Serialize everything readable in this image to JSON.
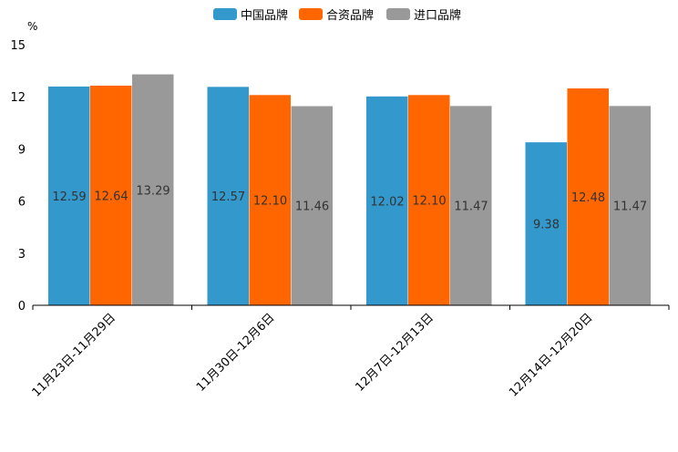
{
  "chart_data": {
    "type": "bar",
    "unit": "%",
    "categories": [
      "11月23日-11月29日",
      "11月30日-12月6日",
      "12月7日-12月13日",
      "12月14日-12月20日"
    ],
    "series": [
      {
        "name": "中国品牌",
        "color": "#3399cc",
        "values": [
          12.59,
          12.57,
          12.02,
          9.38
        ],
        "labels": [
          "12.59",
          "12.57",
          "12.02",
          "9.38"
        ]
      },
      {
        "name": "合资品牌",
        "color": "#ff6600",
        "values": [
          12.64,
          12.1,
          12.1,
          12.48
        ],
        "labels": [
          "12.64",
          "12.10",
          "12.10",
          "12.48"
        ]
      },
      {
        "name": "进口品牌",
        "color": "#999999",
        "values": [
          13.29,
          11.46,
          11.47,
          11.47
        ],
        "labels": [
          "13.29",
          "11.46",
          "11.47",
          "11.47"
        ]
      }
    ],
    "ylim": [
      0,
      15
    ],
    "yticks": [
      "0",
      "3",
      "6",
      "9",
      "12",
      "15"
    ],
    "legend_position": "top-center"
  }
}
